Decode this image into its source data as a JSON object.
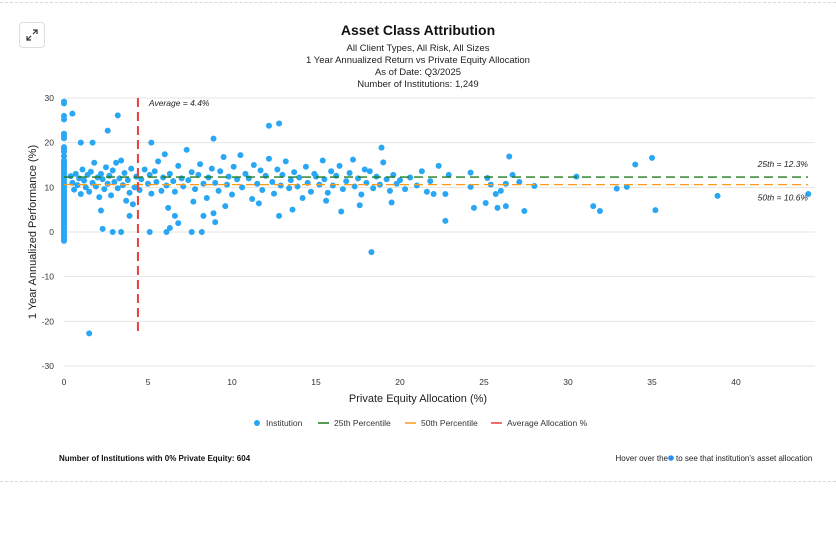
{
  "expand_button": {
    "icon": "expand-arrows-icon"
  },
  "header": {
    "title": "Asset Class Attribution",
    "subtitles": [
      "All Client Types, All Risk, All Sizes",
      "1 Year Annualized Return vs Private Equity Allocation",
      "As of Date: Q3/2025",
      "Number of Institutions: 1,249"
    ]
  },
  "footer": {
    "zero_pe_label": "Number of Institutions with 0% Private Equity: 604",
    "hover_prefix": "Hover over the",
    "hover_suffix": "to see that institution's asset allocation"
  },
  "colors": {
    "point": "#2aa7f4",
    "p25": "#1e7a1e",
    "p50": "#ff9a1a",
    "average": "#ee3b3b"
  },
  "chart_data": {
    "type": "scatter",
    "xlabel": "Private Equity Allocation (%)",
    "ylabel": "1 Year Annualized Performance (%)",
    "xlim": [
      0,
      44.7
    ],
    "ylim": [
      -30,
      30
    ],
    "xticks": [
      "0",
      "5",
      "10",
      "15",
      "20",
      "25",
      "30",
      "35",
      "40"
    ],
    "yticks": [
      "30",
      "20",
      "10",
      "0",
      "-10",
      "-20",
      "-30"
    ],
    "grid": "horizontal",
    "legend": {
      "placement": "bottom",
      "entries": [
        "Institution",
        "25th Percentile",
        "50th Percentile",
        "Average Allocation %"
      ]
    },
    "reference_lines": {
      "p25": {
        "value": 12.3,
        "label": "25th = 12.3%"
      },
      "p50": {
        "value": 10.6,
        "label": "50th = 10.6%"
      },
      "average": {
        "value": 4.4,
        "label": "Average = 4.4%"
      }
    },
    "series": [
      {
        "name": "Institution",
        "points": [
          [
            0,
            29.2
          ],
          [
            0,
            28.8
          ],
          [
            0,
            26
          ],
          [
            0,
            25.2
          ],
          [
            0,
            22
          ],
          [
            0,
            21.5
          ],
          [
            0,
            21
          ],
          [
            0,
            19
          ],
          [
            0,
            18.5
          ],
          [
            0,
            18
          ],
          [
            0,
            17
          ],
          [
            0,
            16
          ],
          [
            0,
            15.5
          ],
          [
            0,
            15
          ],
          [
            0,
            14.5
          ],
          [
            0,
            14
          ],
          [
            0,
            13.5
          ],
          [
            0,
            13
          ],
          [
            0,
            12.5
          ],
          [
            0,
            12
          ],
          [
            0,
            11.5
          ],
          [
            0,
            11
          ],
          [
            0,
            10.5
          ],
          [
            0,
            10
          ],
          [
            0,
            9.5
          ],
          [
            0,
            9
          ],
          [
            0,
            8.5
          ],
          [
            0,
            8
          ],
          [
            0,
            7.5
          ],
          [
            0,
            7
          ],
          [
            0,
            6.5
          ],
          [
            0,
            6
          ],
          [
            0,
            5.5
          ],
          [
            0,
            5
          ],
          [
            0,
            4.5
          ],
          [
            0,
            4
          ],
          [
            0,
            3.5
          ],
          [
            0,
            3
          ],
          [
            0,
            2.5
          ],
          [
            0,
            2
          ],
          [
            0,
            1.5
          ],
          [
            0,
            1
          ],
          [
            0,
            0.5
          ],
          [
            0,
            0
          ],
          [
            0,
            -0.5
          ],
          [
            0,
            -1
          ],
          [
            0,
            -1.5
          ],
          [
            0,
            -2
          ],
          [
            0.5,
            26.5
          ],
          [
            3.2,
            26.1
          ],
          [
            2.6,
            22.7
          ],
          [
            1.7,
            20
          ],
          [
            1,
            20
          ],
          [
            5.2,
            20
          ],
          [
            8.9,
            20.9
          ],
          [
            12.2,
            23.8
          ],
          [
            12.8,
            24.3
          ],
          [
            18.9,
            18.9
          ],
          [
            2.3,
            0.7
          ],
          [
            2.9,
            0
          ],
          [
            3.4,
            0
          ],
          [
            3.9,
            3.6
          ],
          [
            5.1,
            0
          ],
          [
            6.1,
            0
          ],
          [
            6.3,
            0.9
          ],
          [
            6.6,
            3.6
          ],
          [
            6.8,
            2
          ],
          [
            7.6,
            0
          ],
          [
            8.2,
            0
          ],
          [
            8.3,
            3.6
          ],
          [
            9,
            2.2
          ],
          [
            12.8,
            3.6
          ],
          [
            1.5,
            -22.7
          ],
          [
            18.3,
            -4.5
          ],
          [
            22.3,
            14.8
          ],
          [
            22.9,
            12.8
          ],
          [
            22,
            8.5
          ],
          [
            22.7,
            8.5
          ],
          [
            22.7,
            2.5
          ],
          [
            24.2,
            13.3
          ],
          [
            24.2,
            10.1
          ],
          [
            24.4,
            5.4
          ],
          [
            25.1,
            6.5
          ],
          [
            25.2,
            12.1
          ],
          [
            25.4,
            10.6
          ],
          [
            25.7,
            8.5
          ],
          [
            25.8,
            5.4
          ],
          [
            26,
            9.2
          ],
          [
            26.3,
            5.8
          ],
          [
            26.3,
            10.8
          ],
          [
            26.5,
            16.9
          ],
          [
            26.7,
            12.8
          ],
          [
            27.1,
            11.2
          ],
          [
            27.4,
            4.7
          ],
          [
            28,
            10.3
          ],
          [
            30.5,
            12.4
          ],
          [
            31.5,
            5.8
          ],
          [
            31.9,
            4.7
          ],
          [
            32.9,
            9.7
          ],
          [
            33.5,
            10.1
          ],
          [
            34,
            15.1
          ],
          [
            35,
            16.6
          ],
          [
            35.2,
            4.9
          ],
          [
            38.9,
            8.1
          ],
          [
            44.3,
            8.5
          ],
          [
            0.4,
            12.5
          ],
          [
            0.5,
            11
          ],
          [
            0.6,
            9.5
          ],
          [
            0.7,
            13
          ],
          [
            0.8,
            10.5
          ],
          [
            0.9,
            12
          ],
          [
            1,
            8.5
          ],
          [
            1.1,
            14
          ],
          [
            1.2,
            11.5
          ],
          [
            1.3,
            10
          ],
          [
            1.4,
            12.8
          ],
          [
            1.5,
            9
          ],
          [
            1.6,
            13.5
          ],
          [
            1.7,
            11
          ],
          [
            1.8,
            15.5
          ],
          [
            1.9,
            10.2
          ],
          [
            2,
            12.2
          ],
          [
            2.1,
            7.8
          ],
          [
            2.2,
            13
          ],
          [
            2.3,
            11.8
          ],
          [
            2.4,
            9.6
          ],
          [
            2.5,
            14.5
          ],
          [
            2.6,
            10.8
          ],
          [
            2.7,
            12.6
          ],
          [
            2.8,
            8.2
          ],
          [
            2.9,
            13.8
          ],
          [
            3,
            11.2
          ],
          [
            3.1,
            15.5
          ],
          [
            3.2,
            9.8
          ],
          [
            3.3,
            12
          ],
          [
            3.4,
            16
          ],
          [
            3.5,
            10.5
          ],
          [
            3.6,
            13.2
          ],
          [
            3.8,
            11.6
          ],
          [
            3.9,
            8.8
          ],
          [
            4,
            14.2
          ],
          [
            4.2,
            10
          ],
          [
            4.3,
            12.4
          ],
          [
            4.5,
            9.4
          ],
          [
            4.6,
            11.8
          ],
          [
            4.8,
            14
          ],
          [
            5,
            10.8
          ],
          [
            5.1,
            12.8
          ],
          [
            5.2,
            8.6
          ],
          [
            5.4,
            13.6
          ],
          [
            5.5,
            11.2
          ],
          [
            5.6,
            15.8
          ],
          [
            5.8,
            9.2
          ],
          [
            5.9,
            12.2
          ],
          [
            6,
            17.4
          ],
          [
            6.1,
            10.4
          ],
          [
            6.3,
            13
          ],
          [
            6.5,
            11.4
          ],
          [
            6.6,
            9
          ],
          [
            6.8,
            14.8
          ],
          [
            7,
            12
          ],
          [
            7.1,
            10.2
          ],
          [
            7.3,
            18.4
          ],
          [
            7.4,
            11.6
          ],
          [
            7.6,
            13.4
          ],
          [
            7.8,
            9.6
          ],
          [
            8,
            12.8
          ],
          [
            8.1,
            15.2
          ],
          [
            8.3,
            10.8
          ],
          [
            8.5,
            7.6
          ],
          [
            8.6,
            12.2
          ],
          [
            8.8,
            14.2
          ],
          [
            9,
            11
          ],
          [
            9.2,
            9.2
          ],
          [
            9.3,
            13.6
          ],
          [
            9.5,
            16.8
          ],
          [
            9.7,
            10.6
          ],
          [
            9.8,
            12.4
          ],
          [
            10,
            8.4
          ],
          [
            10.1,
            14.6
          ],
          [
            10.3,
            11.8
          ],
          [
            10.5,
            17.2
          ],
          [
            10.6,
            10
          ],
          [
            10.8,
            13
          ],
          [
            11,
            12
          ],
          [
            11.2,
            7.4
          ],
          [
            11.3,
            15
          ],
          [
            11.5,
            10.8
          ],
          [
            11.7,
            13.8
          ],
          [
            11.8,
            9.4
          ],
          [
            12,
            12.6
          ],
          [
            12.2,
            16.4
          ],
          [
            12.4,
            11.2
          ],
          [
            12.5,
            8.6
          ],
          [
            12.7,
            14
          ],
          [
            12.9,
            10.4
          ],
          [
            13,
            12.8
          ],
          [
            13.2,
            15.8
          ],
          [
            13.4,
            9.8
          ],
          [
            13.5,
            11.6
          ],
          [
            13.7,
            13.4
          ],
          [
            13.9,
            10.2
          ],
          [
            14,
            12.2
          ],
          [
            14.2,
            7.6
          ],
          [
            14.4,
            14.6
          ],
          [
            14.5,
            11
          ],
          [
            14.7,
            9
          ],
          [
            14.9,
            13
          ],
          [
            15,
            12.4
          ],
          [
            15.2,
            10.6
          ],
          [
            15.4,
            16
          ],
          [
            15.5,
            11.8
          ],
          [
            15.7,
            8.8
          ],
          [
            15.9,
            13.6
          ],
          [
            16,
            10.4
          ],
          [
            16.2,
            12.6
          ],
          [
            16.4,
            14.8
          ],
          [
            16.6,
            9.6
          ],
          [
            16.8,
            11.4
          ],
          [
            17,
            13.2
          ],
          [
            17.2,
            16.2
          ],
          [
            17.3,
            10.2
          ],
          [
            17.5,
            12
          ],
          [
            17.7,
            8.4
          ],
          [
            17.9,
            14
          ],
          [
            18,
            11
          ],
          [
            18.2,
            13.6
          ],
          [
            18.4,
            9.8
          ],
          [
            18.6,
            12.4
          ],
          [
            18.8,
            10.6
          ],
          [
            19,
            15.6
          ],
          [
            19.2,
            11.8
          ],
          [
            19.4,
            9.2
          ],
          [
            19.6,
            12.8
          ],
          [
            19.8,
            10.8
          ],
          [
            20,
            11.6
          ],
          [
            20.3,
            9.6
          ],
          [
            20.6,
            12.2
          ],
          [
            21,
            10.4
          ],
          [
            21.3,
            13.6
          ],
          [
            21.6,
            9
          ],
          [
            21.8,
            11.4
          ],
          [
            4.1,
            6.2
          ],
          [
            6.2,
            5.4
          ],
          [
            3.7,
            7
          ],
          [
            7.7,
            6.8
          ],
          [
            9.6,
            5.8
          ],
          [
            11.6,
            6.4
          ],
          [
            13.6,
            5
          ],
          [
            15.6,
            7
          ],
          [
            17.6,
            6
          ],
          [
            19.5,
            6.6
          ],
          [
            2.2,
            4.8
          ],
          [
            8.9,
            4.2
          ],
          [
            16.5,
            4.6
          ]
        ]
      }
    ]
  }
}
